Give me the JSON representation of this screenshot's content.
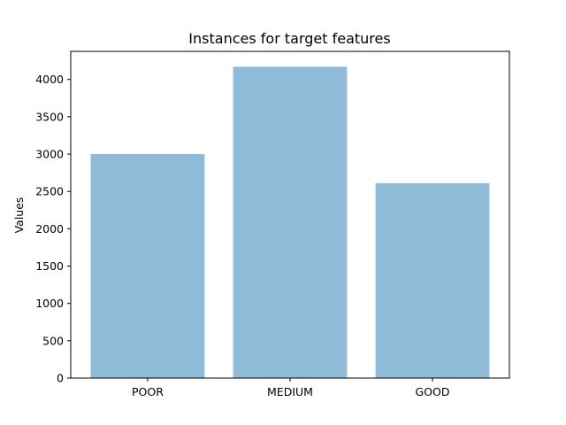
{
  "chart_data": {
    "type": "bar",
    "title": "Instances for target features",
    "xlabel": "",
    "ylabel": "Values",
    "categories": [
      "POOR",
      "MEDIUM",
      "GOOD"
    ],
    "values": [
      3000,
      4170,
      2610
    ],
    "ylim": [
      0,
      4376
    ],
    "yticks": [
      0,
      500,
      1000,
      1500,
      2000,
      2500,
      3000,
      3500,
      4000
    ],
    "grid": false,
    "legend": "none",
    "bar_color": "#8fbbd9",
    "axis_color": "#000000"
  }
}
